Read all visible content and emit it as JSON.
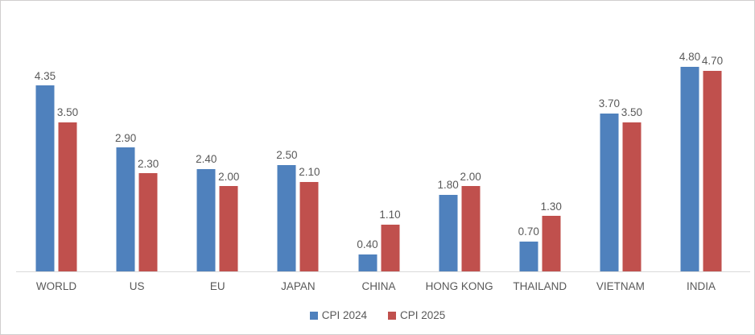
{
  "chart_data": {
    "type": "bar",
    "title": "",
    "xlabel": "",
    "ylabel": "",
    "ylim": [
      0,
      5
    ],
    "grid": false,
    "legend_position": "bottom",
    "data_labels": true,
    "categories": [
      "WORLD",
      "US",
      "EU",
      "JAPAN",
      "CHINA",
      "HONG KONG",
      "THAILAND",
      "VIETNAM",
      "INDIA"
    ],
    "series": [
      {
        "name": "CPI 2024",
        "color": "#4F81BD",
        "values": [
          4.35,
          2.9,
          2.4,
          2.5,
          0.4,
          1.8,
          0.7,
          3.7,
          4.8
        ],
        "labels": [
          "4.35",
          "2.90",
          "2.40",
          "2.50",
          "0.40",
          "1.80",
          "0.70",
          "3.70",
          "4.80"
        ]
      },
      {
        "name": "CPI 2025",
        "color": "#C0504D",
        "values": [
          3.5,
          2.3,
          2.0,
          2.1,
          1.1,
          2.0,
          1.3,
          3.5,
          4.7
        ],
        "labels": [
          "3.50",
          "2.30",
          "2.00",
          "2.10",
          "1.10",
          "2.00",
          "1.30",
          "3.50",
          "4.70"
        ]
      }
    ]
  },
  "colors": {
    "text": "#595959",
    "axis_line": "#d9d9d9",
    "frame_border": "#d0cece",
    "background": "#ffffff"
  }
}
